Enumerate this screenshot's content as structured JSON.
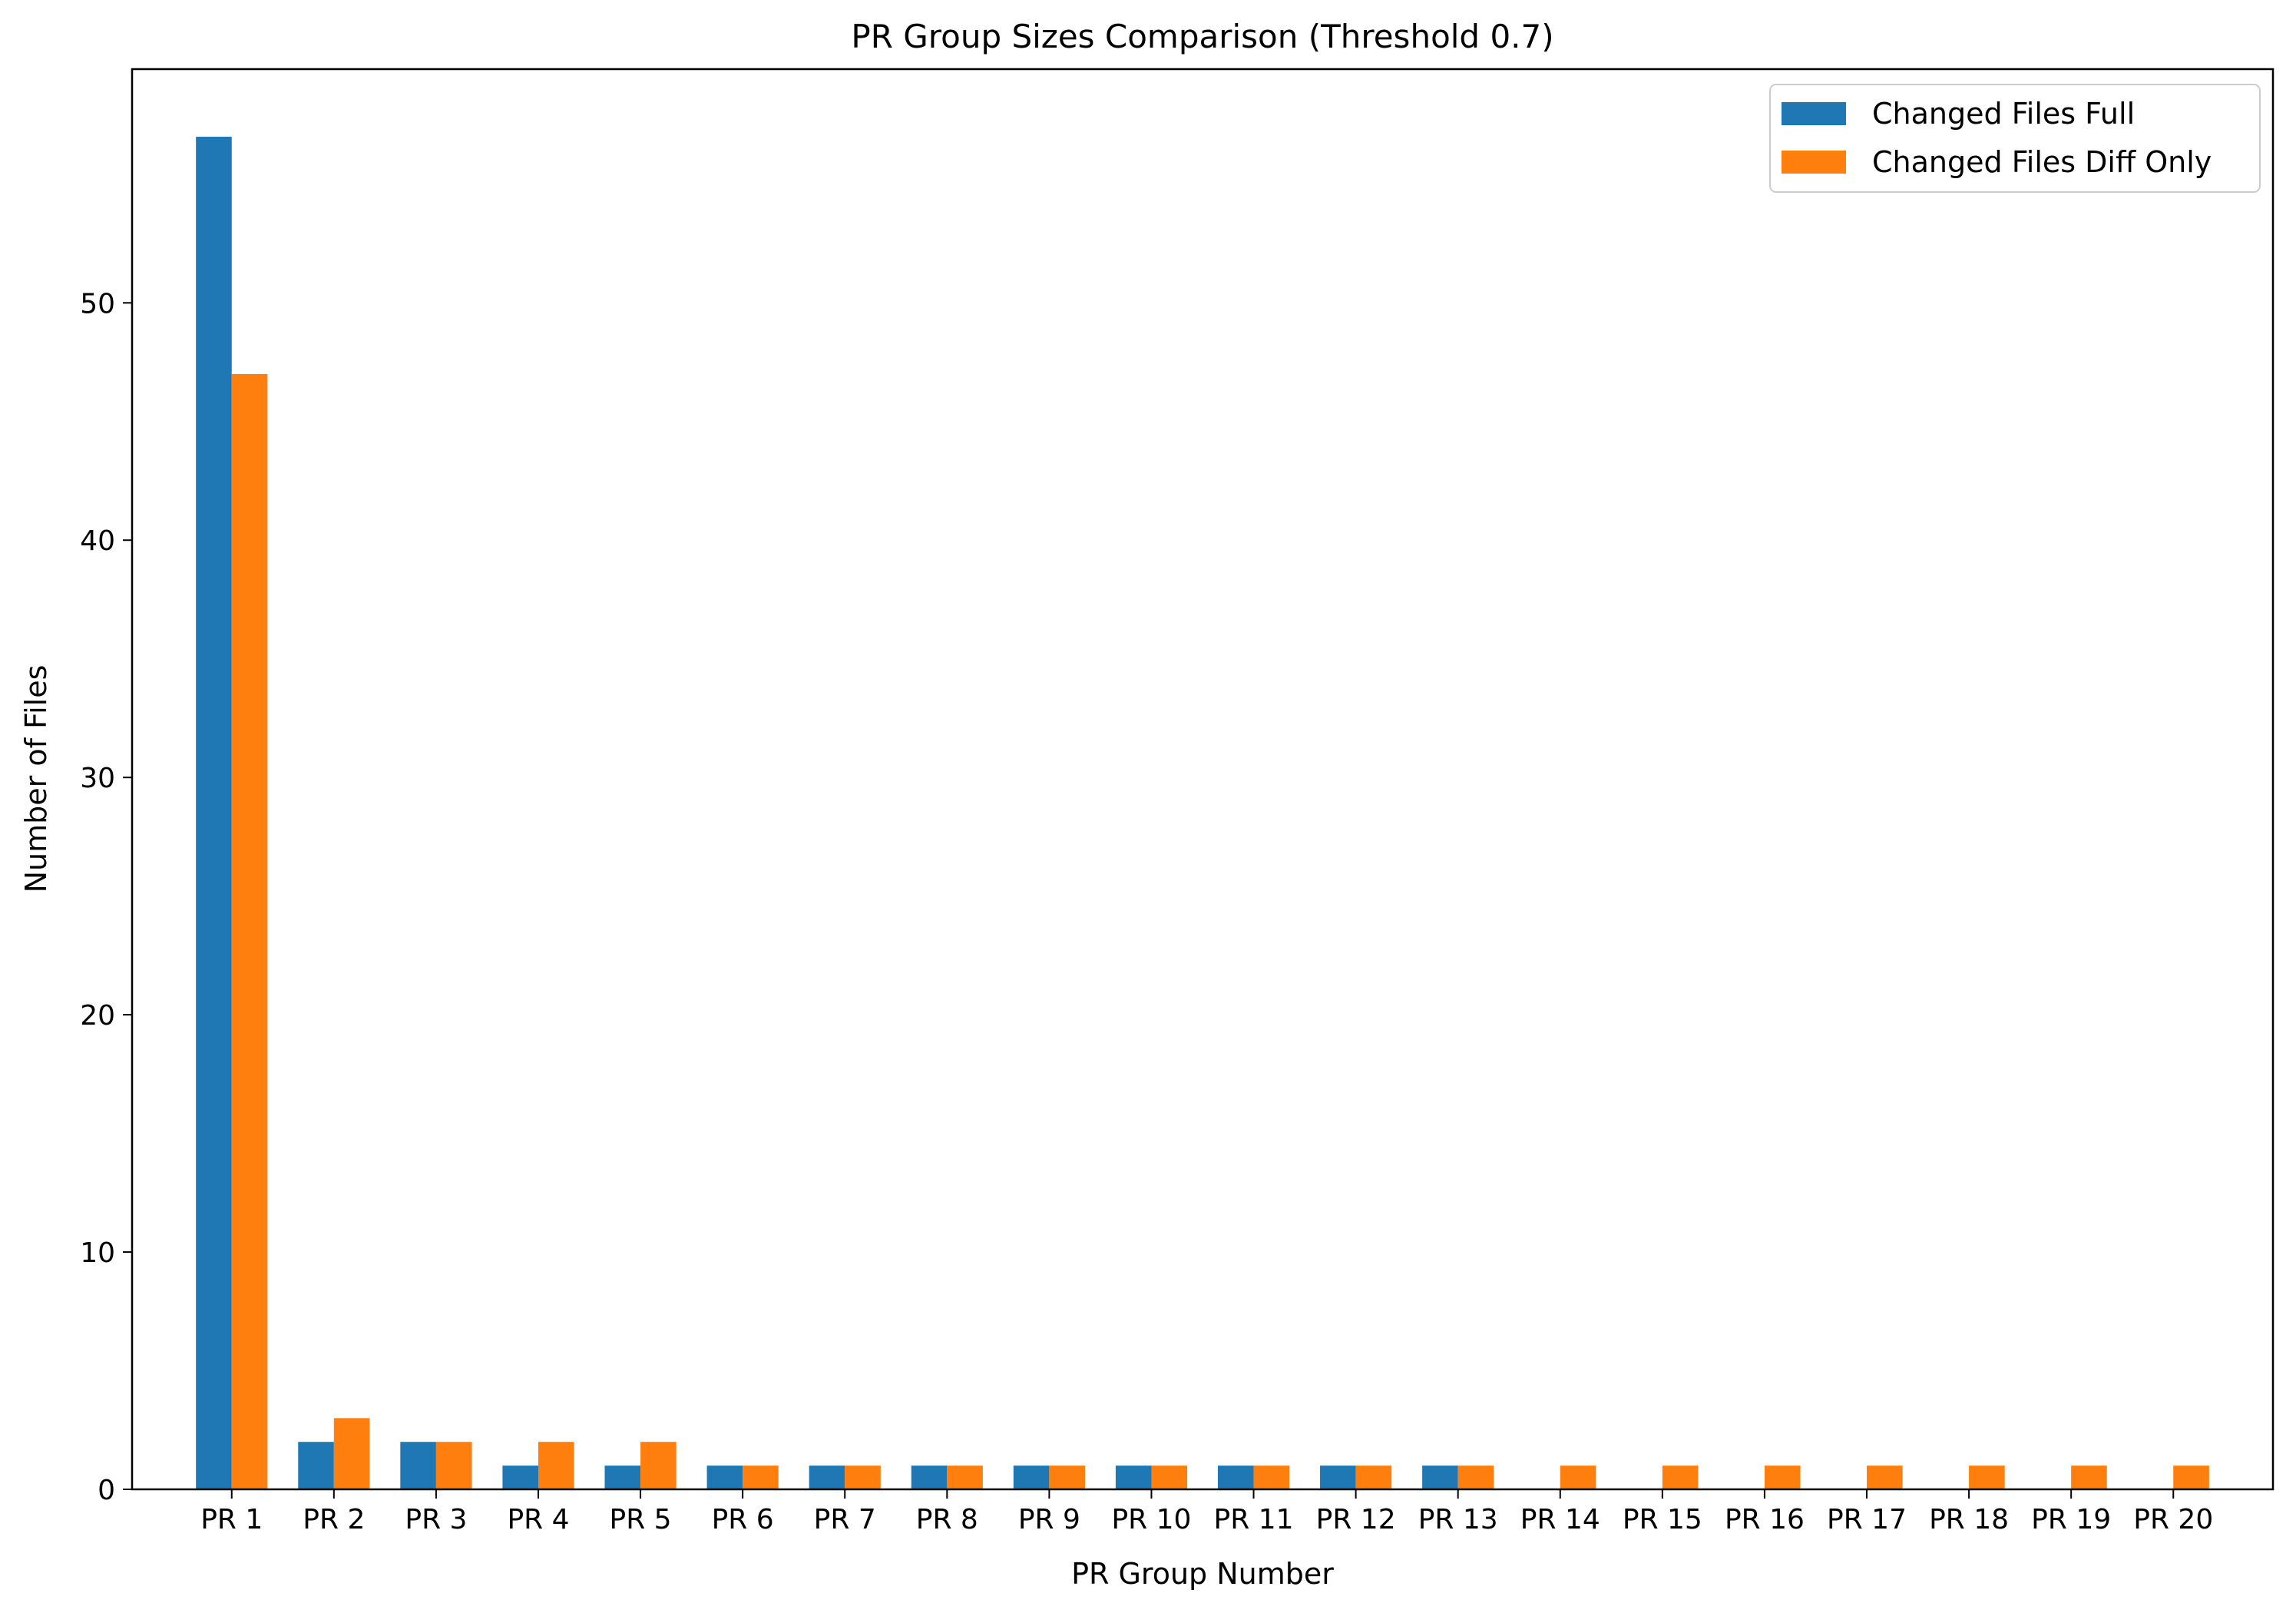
{
  "chart_data": {
    "type": "bar",
    "title": "PR Group Sizes Comparison (Threshold 0.7)",
    "xlabel": "PR Group Number",
    "ylabel": "Number of Files",
    "categories": [
      "PR 1",
      "PR 2",
      "PR 3",
      "PR 4",
      "PR 5",
      "PR 6",
      "PR 7",
      "PR 8",
      "PR 9",
      "PR 10",
      "PR 11",
      "PR 12",
      "PR 13",
      "PR 14",
      "PR 15",
      "PR 16",
      "PR 17",
      "PR 18",
      "PR 19",
      "PR 20"
    ],
    "series": [
      {
        "name": "Changed Files Full",
        "color": "#1f77b4",
        "values": [
          57,
          2,
          2,
          1,
          1,
          1,
          1,
          1,
          1,
          1,
          1,
          1,
          1,
          0,
          0,
          0,
          0,
          0,
          0,
          0
        ]
      },
      {
        "name": "Changed Files Diff Only",
        "color": "#ff7f0e",
        "values": [
          47,
          3,
          2,
          2,
          2,
          1,
          1,
          1,
          1,
          1,
          1,
          1,
          1,
          1,
          1,
          1,
          1,
          1,
          1,
          1
        ]
      }
    ],
    "ylim": [
      0,
      59.85
    ],
    "yticks": [
      0,
      10,
      20,
      30,
      40,
      50
    ],
    "grid": false,
    "legend_position": "top-right"
  }
}
